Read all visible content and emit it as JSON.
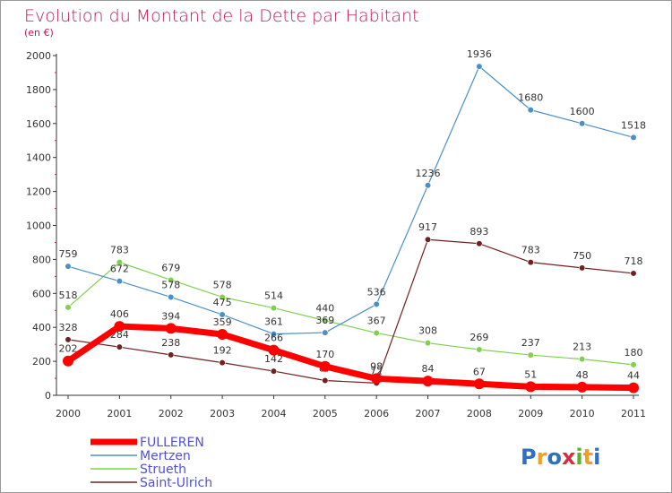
{
  "chart_data": {
    "type": "line",
    "title": "Evolution du Montant de la Dette par Habitant",
    "subtitle": "(en €)",
    "categories": [
      "2000",
      "2001",
      "2002",
      "2003",
      "2004",
      "2005",
      "2006",
      "2007",
      "2008",
      "2009",
      "2010",
      "2011"
    ],
    "ylim": [
      0,
      2000
    ],
    "yticks": [
      0,
      200,
      400,
      600,
      800,
      1000,
      1200,
      1400,
      1600,
      1800,
      2000
    ],
    "grid": false,
    "legend_position": "bottom-left",
    "series": [
      {
        "name": "FULLEREN",
        "color": "#ff0000",
        "values": [
          202,
          406,
          394,
          359,
          266,
          170,
          98,
          84,
          67,
          51,
          48,
          44
        ]
      },
      {
        "name": "Mertzen",
        "color": "#4a90c8",
        "values": [
          759,
          672,
          578,
          475,
          361,
          369,
          536,
          1236,
          1936,
          1680,
          1600,
          1518
        ]
      },
      {
        "name": "Strueth",
        "color": "#80d050",
        "values": [
          518,
          783,
          679,
          578,
          514,
          440,
          367,
          308,
          269,
          237,
          213,
          180
        ]
      },
      {
        "name": "Saint-Ulrich",
        "color": "#702020",
        "values": [
          328,
          284,
          238,
          192,
          142,
          87,
          72,
          917,
          893,
          783,
          750,
          718
        ]
      }
    ]
  },
  "logo": {
    "text": "Proxiti",
    "letters": [
      "P",
      "r",
      "o",
      "x",
      "i",
      "t",
      "i"
    ],
    "colors": [
      "#3070c0",
      "#f0a020",
      "#3070c0",
      "#d03040",
      "#60b030",
      "#f0a020",
      "#3070c0"
    ]
  }
}
